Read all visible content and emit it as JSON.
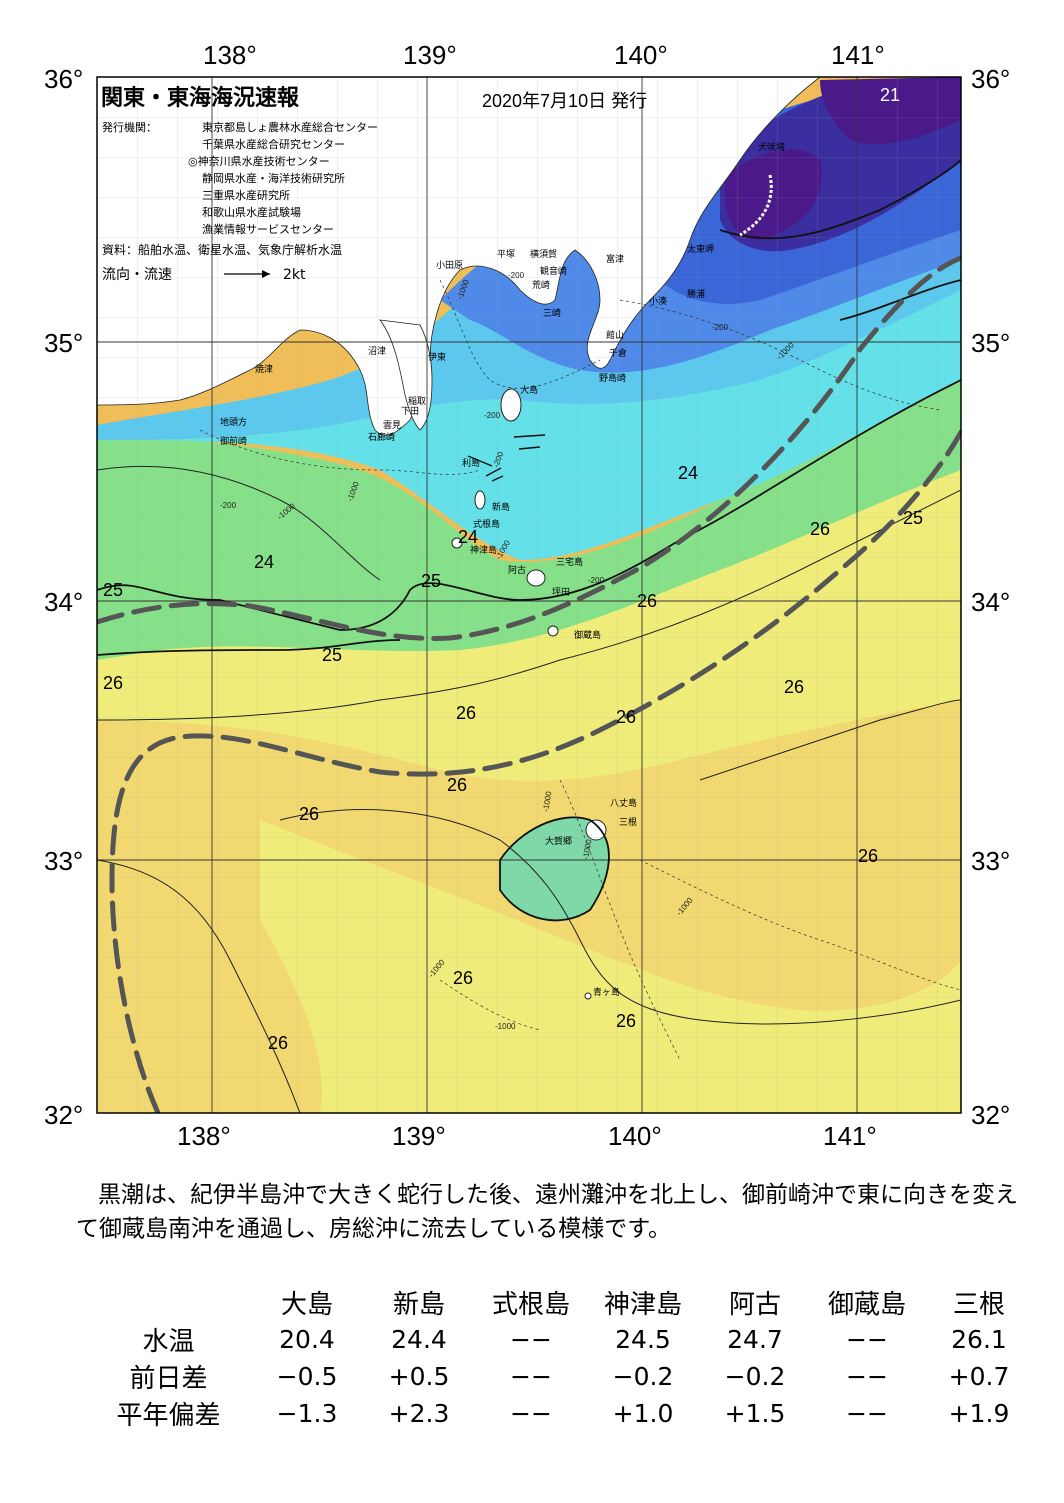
{
  "map": {
    "title": "関東・東海海況速報",
    "issue_date": "2020年7月10日 発行",
    "issuer_label": "発行機関：",
    "issuers": [
      "東京都島しょ農林水産総合センター",
      "千葉県水産総合研究センター",
      "◎神奈川県水産技術センター",
      "静岡県水産・海洋技術研究所",
      "三重県水産研究所",
      "和歌山県水産試験場",
      "漁業情報サービスセンター"
    ],
    "sources": "資料：船舶水温、衛星水温、気象庁解析水温",
    "current_legend": "流向・流速",
    "current_scale": "2kt",
    "lon_labels": [
      "138°",
      "139°",
      "140°",
      "141°"
    ],
    "lat_labels": [
      "36°",
      "35°",
      "34°",
      "33°",
      "32°"
    ],
    "places": [
      "犬吠埼",
      "太東岬",
      "勝浦",
      "小湊",
      "富津",
      "横須賀",
      "平塚",
      "小田原",
      "観音崎",
      "荒崎",
      "三崎",
      "館山",
      "千倉",
      "野島崎",
      "大島",
      "沼津",
      "伊東",
      "焼津",
      "稲取",
      "下田",
      "雲見",
      "石廊崎",
      "地頭方",
      "御前崎",
      "利島",
      "新島",
      "式根島",
      "神津島",
      "三宅島",
      "阿古",
      "坪田",
      "御蔵島",
      "八丈島",
      "三根",
      "大賀郷",
      "青ヶ島"
    ],
    "isotherm_labels": [
      "21",
      "24",
      "24",
      "24",
      "25",
      "25",
      "25",
      "25",
      "26",
      "26",
      "26",
      "26",
      "26",
      "26",
      "26",
      "26",
      "26",
      "26",
      "26"
    ],
    "depth_labels": [
      "-200",
      "-1000",
      "-200",
      "-200",
      "-1000",
      "-200",
      "-1000",
      "-1000",
      "-200",
      "-1000",
      "-200",
      "-1000",
      "-1000",
      "-1000",
      "-1000",
      "-1000"
    ],
    "colors": {
      "t21": "#4a1a8a",
      "t22": "#3a2ea0",
      "t23": "#3a66d8",
      "t23b": "#4f8ae8",
      "t24": "#5cc8ee",
      "t24b": "#64e0e8",
      "t25": "#7ed8a8",
      "t25b": "#86e08a",
      "t26a": "#c8e878",
      "t26b": "#f0ec7a",
      "t26c": "#f2d870",
      "t27": "#f0be58",
      "land": "#ffffff",
      "kuroshio": "#555555"
    }
  },
  "summary": "黒潮は、紀伊半島沖で大きく蛇行した後、遠州灘沖を北上し、御前崎沖で東に向きを変えて御蔵島南沖を通過し、房総沖に流去している模様です。",
  "table": {
    "columns": [
      "大島",
      "新島",
      "式根島",
      "神津島",
      "阿古",
      "御蔵島",
      "三根"
    ],
    "rows": [
      {
        "label": "水温",
        "values": [
          "20.4",
          "24.4",
          "−−",
          "24.5",
          "24.7",
          "−−",
          "26.1"
        ]
      },
      {
        "label": "前日差",
        "values": [
          "−0.5",
          "+0.5",
          "−−",
          "−0.2",
          "−0.2",
          "−−",
          "+0.7"
        ]
      },
      {
        "label": "平年偏差",
        "values": [
          "−1.3",
          "+2.3",
          "−−",
          "+1.0",
          "+1.5",
          "−−",
          "+1.9"
        ]
      }
    ]
  }
}
